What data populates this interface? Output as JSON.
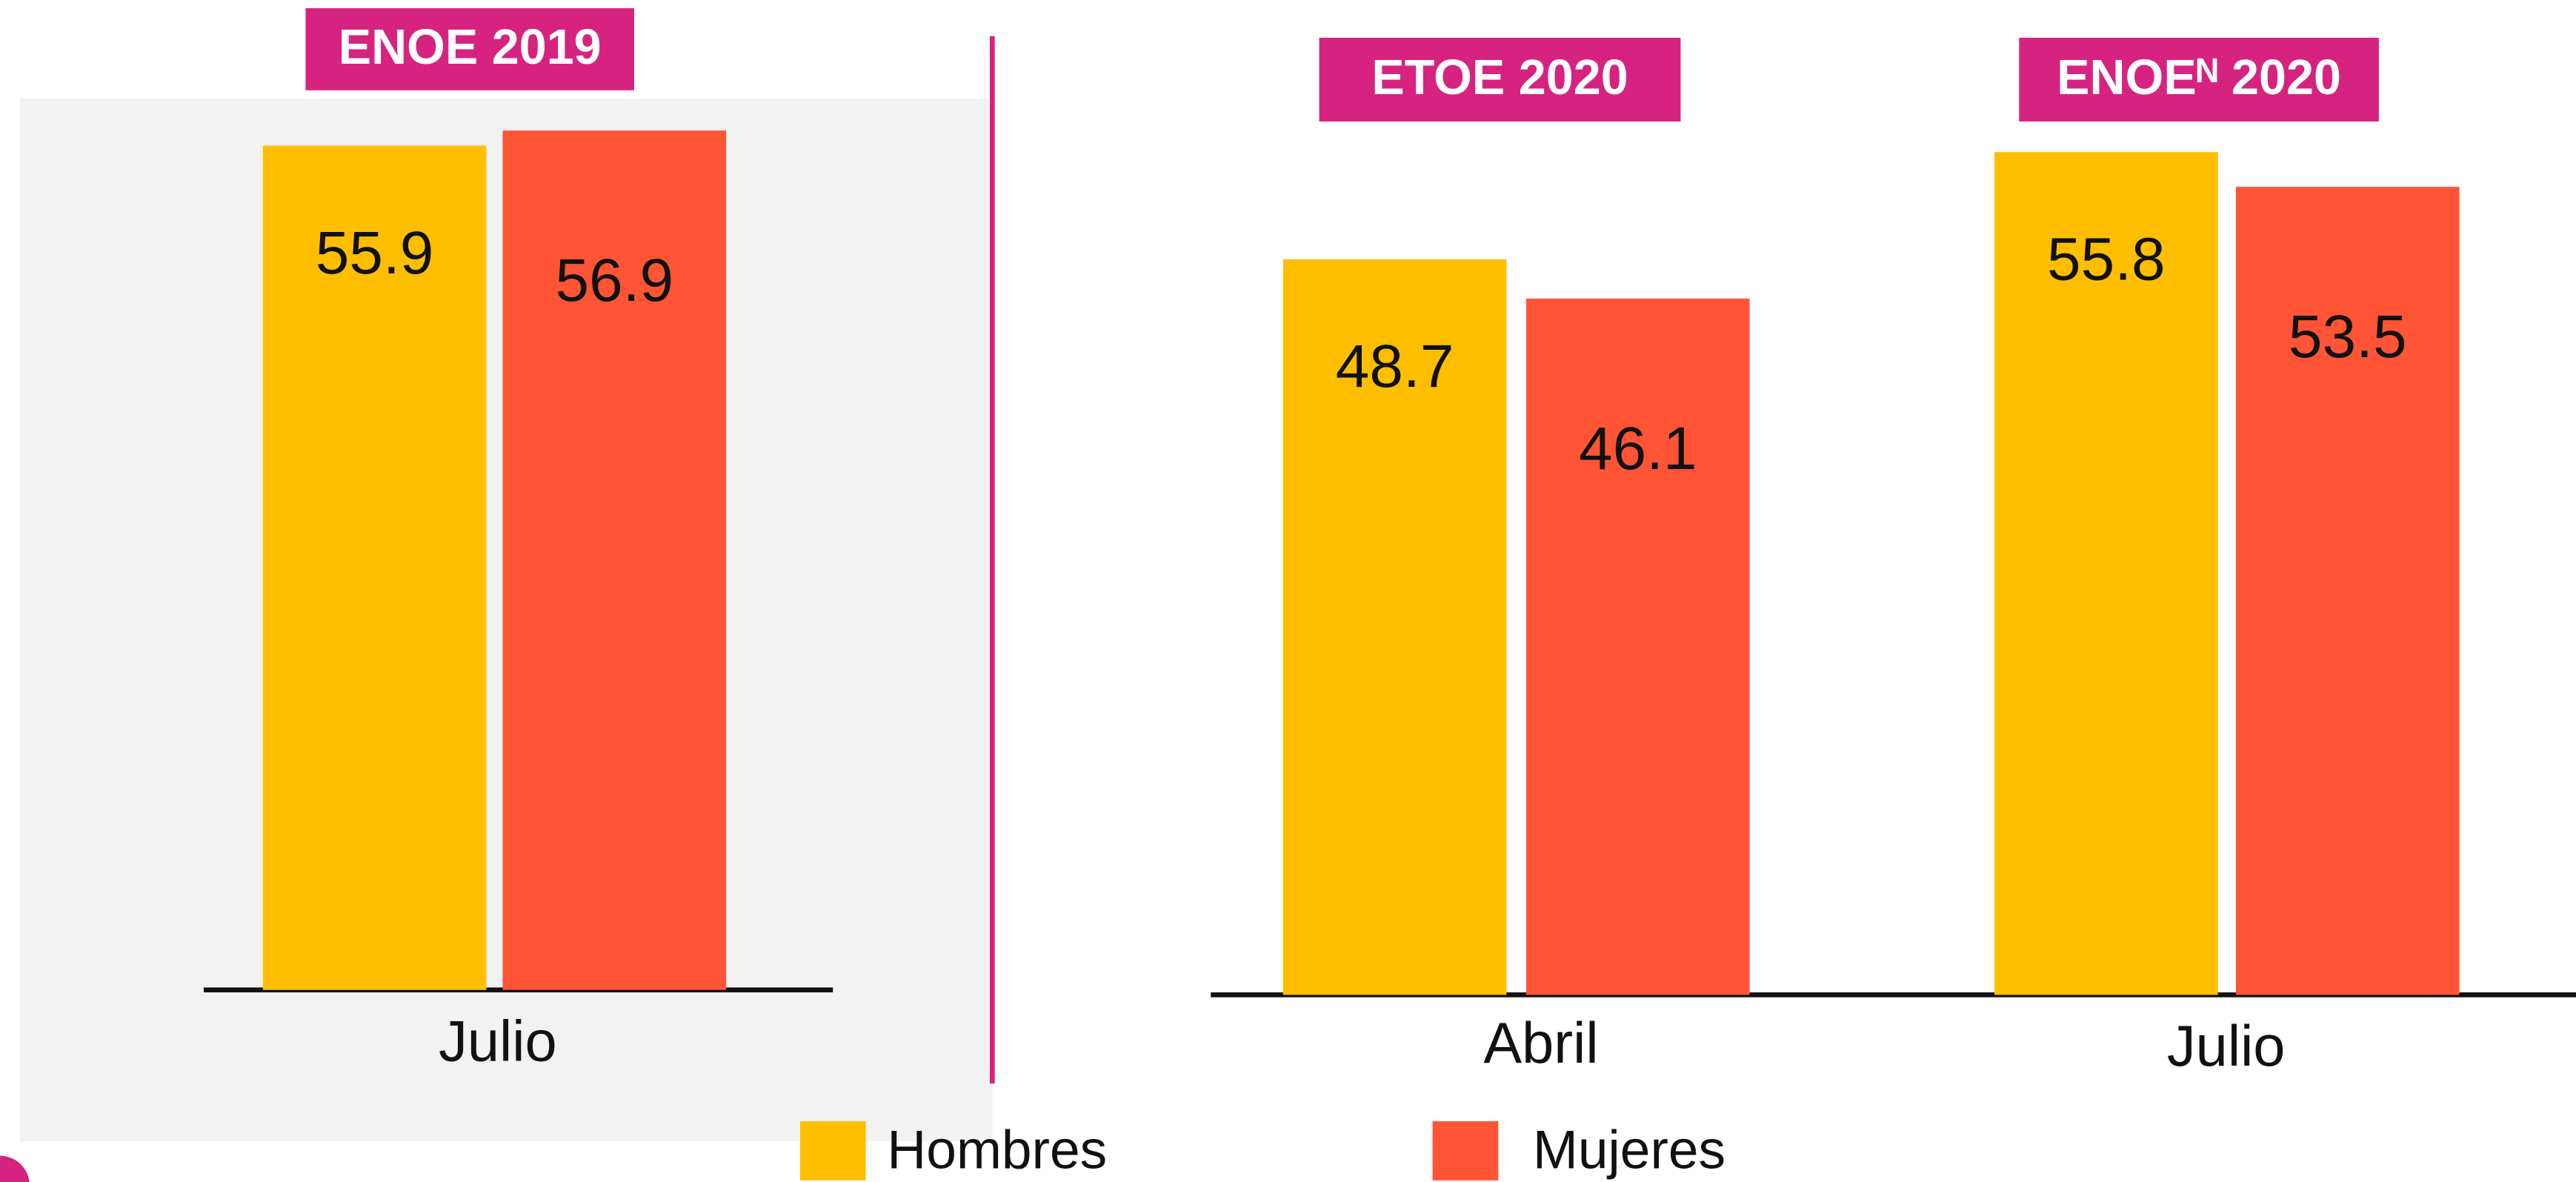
{
  "chart_data": [
    {
      "type": "bar",
      "title": "ENOE 2019",
      "categories": [
        "Julio"
      ],
      "series": [
        {
          "color": "#FFBE00",
          "values": [
            55.9
          ]
        },
        {
          "color": "#FF5436",
          "values": [
            56.9
          ]
        }
      ]
    },
    {
      "type": "bar",
      "group_titles": [
        "ETOE 2020",
        "ENOEᴺ 2020"
      ],
      "categories": [
        "Abril",
        "Julio"
      ],
      "series": [
        {
          "name": "Hombres",
          "color": "#FFBE00",
          "values": [
            48.7,
            55.8
          ]
        },
        {
          "name": "Mujeres",
          "color": "#FF5436",
          "values": [
            46.1,
            53.5
          ]
        }
      ]
    }
  ]
}
